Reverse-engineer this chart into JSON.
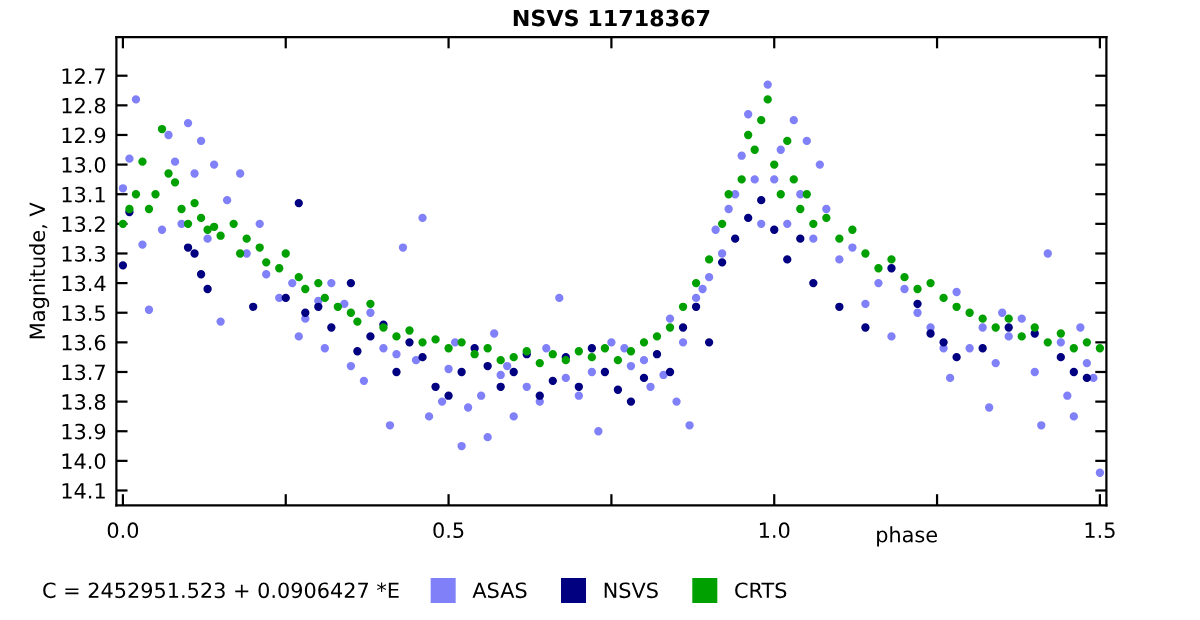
{
  "chart_data": {
    "type": "scatter",
    "title": "NSVS 11718367",
    "xlabel": "phase",
    "ylabel": "Magnitude, V",
    "annotations": [
      "C = 2452951.523 + 0.0906427 *E"
    ],
    "xlim": [
      -0.01,
      1.51
    ],
    "ylim": [
      14.15,
      12.57
    ],
    "xticks": [
      {
        "value": 0,
        "label": "0.0"
      },
      {
        "value": 0.25,
        "label": null
      },
      {
        "value": 0.5,
        "label": "0.5"
      },
      {
        "value": 0.75,
        "label": null
      },
      {
        "value": 1,
        "label": "1.0"
      },
      {
        "value": 1.25,
        "label": null
      },
      {
        "value": 1.5,
        "label": "1.5"
      }
    ],
    "yticks": [
      12.7,
      12.8,
      12.9,
      {
        "value": 13.0,
        "label": "13.0"
      },
      13.1,
      13.2,
      13.3,
      13.4,
      13.5,
      13.6,
      13.7,
      13.8,
      13.9,
      {
        "value": 14.0,
        "label": "14.0"
      },
      14.1
    ],
    "grid": false,
    "legend": "bottom",
    "marker": "circle",
    "series": [
      {
        "name": "ASAS",
        "color": "#8080f8",
        "x": [
          0.0,
          0.01,
          0.02,
          0.03,
          0.04,
          0.06,
          0.07,
          0.08,
          0.09,
          0.1,
          0.11,
          0.12,
          0.13,
          0.14,
          0.15,
          0.16,
          0.18,
          0.19,
          0.21,
          0.22,
          0.24,
          0.26,
          0.27,
          0.28,
          0.3,
          0.31,
          0.32,
          0.34,
          0.35,
          0.37,
          0.38,
          0.4,
          0.41,
          0.42,
          0.43,
          0.45,
          0.46,
          0.47,
          0.49,
          0.5,
          0.51,
          0.52,
          0.53,
          0.55,
          0.56,
          0.57,
          0.58,
          0.59,
          0.6,
          0.62,
          0.64,
          0.65,
          0.67,
          0.68,
          0.7,
          0.72,
          0.73,
          0.75,
          0.77,
          0.78,
          0.8,
          0.81,
          0.83,
          0.84,
          0.85,
          0.86,
          0.87,
          0.88,
          0.89,
          0.9,
          0.91,
          0.92,
          0.93,
          0.94,
          0.95,
          0.96,
          0.97,
          0.98,
          0.99,
          1.0,
          1.01,
          1.02,
          1.03,
          1.04,
          1.05,
          1.06,
          1.07,
          1.08,
          1.1,
          1.12,
          1.14,
          1.16,
          1.18,
          1.2,
          1.22,
          1.24,
          1.26,
          1.27,
          1.28,
          1.3,
          1.32,
          1.33,
          1.34,
          1.35,
          1.36,
          1.38,
          1.4,
          1.41,
          1.42,
          1.44,
          1.45,
          1.46,
          1.47,
          1.48,
          1.49,
          1.5
        ],
        "values": [
          13.08,
          12.98,
          12.78,
          13.27,
          13.49,
          13.22,
          12.9,
          12.99,
          13.2,
          12.86,
          13.03,
          12.92,
          13.25,
          13.0,
          13.53,
          13.12,
          13.03,
          13.3,
          13.2,
          13.37,
          13.45,
          13.4,
          13.58,
          13.52,
          13.46,
          13.62,
          13.4,
          13.47,
          13.68,
          13.73,
          13.5,
          13.62,
          13.88,
          13.64,
          13.28,
          13.66,
          13.18,
          13.85,
          13.8,
          13.69,
          13.6,
          13.95,
          13.82,
          13.78,
          13.92,
          13.57,
          13.71,
          13.68,
          13.85,
          13.75,
          13.8,
          13.62,
          13.45,
          13.72,
          13.78,
          13.7,
          13.9,
          13.6,
          13.62,
          13.68,
          13.66,
          13.75,
          13.71,
          13.52,
          13.8,
          13.6,
          13.88,
          13.45,
          13.42,
          13.38,
          13.22,
          13.3,
          13.15,
          13.1,
          12.97,
          12.83,
          13.05,
          13.2,
          12.73,
          13.05,
          12.95,
          13.2,
          12.85,
          13.1,
          12.92,
          13.25,
          13.0,
          13.15,
          13.32,
          13.28,
          13.47,
          13.4,
          13.58,
          13.42,
          13.5,
          13.55,
          13.62,
          13.72,
          13.43,
          13.62,
          13.55,
          13.82,
          13.67,
          13.5,
          13.58,
          13.52,
          13.7,
          13.88,
          13.3,
          13.6,
          13.78,
          13.85,
          13.55,
          13.67,
          13.72,
          14.04
        ]
      },
      {
        "name": "NSVS",
        "color": "#000080",
        "x": [
          0.0,
          0.01,
          0.1,
          0.11,
          0.12,
          0.13,
          0.2,
          0.25,
          0.27,
          0.28,
          0.3,
          0.32,
          0.35,
          0.36,
          0.38,
          0.4,
          0.42,
          0.44,
          0.46,
          0.48,
          0.5,
          0.52,
          0.54,
          0.56,
          0.58,
          0.6,
          0.62,
          0.64,
          0.66,
          0.68,
          0.7,
          0.72,
          0.74,
          0.76,
          0.78,
          0.8,
          0.82,
          0.84,
          0.86,
          0.88,
          0.9,
          0.92,
          0.94,
          0.96,
          0.98,
          1.0,
          1.02,
          1.04,
          1.06,
          1.1,
          1.14,
          1.18,
          1.22,
          1.24,
          1.26,
          1.28,
          1.32,
          1.36,
          1.4,
          1.44,
          1.46,
          1.48
        ],
        "values": [
          13.34,
          13.16,
          13.28,
          13.3,
          13.37,
          13.42,
          13.48,
          13.45,
          13.13,
          13.5,
          13.48,
          13.55,
          13.4,
          13.63,
          13.58,
          13.54,
          13.7,
          13.6,
          13.65,
          13.75,
          13.78,
          13.7,
          13.62,
          13.68,
          13.75,
          13.7,
          13.64,
          13.78,
          13.73,
          13.65,
          13.75,
          13.62,
          13.7,
          13.76,
          13.8,
          13.72,
          13.64,
          13.7,
          13.55,
          13.48,
          13.6,
          13.33,
          13.25,
          13.18,
          13.12,
          13.22,
          13.32,
          13.25,
          13.4,
          13.48,
          13.55,
          13.35,
          13.47,
          13.57,
          13.6,
          13.65,
          13.62,
          13.55,
          13.57,
          13.65,
          13.7,
          13.72
        ]
      },
      {
        "name": "CRTS",
        "color": "#00a000",
        "x": [
          0.0,
          0.01,
          0.02,
          0.03,
          0.04,
          0.05,
          0.06,
          0.07,
          0.08,
          0.09,
          0.1,
          0.11,
          0.12,
          0.13,
          0.14,
          0.15,
          0.17,
          0.18,
          0.19,
          0.21,
          0.22,
          0.24,
          0.25,
          0.27,
          0.28,
          0.3,
          0.31,
          0.33,
          0.35,
          0.36,
          0.38,
          0.4,
          0.42,
          0.44,
          0.46,
          0.48,
          0.5,
          0.52,
          0.54,
          0.56,
          0.58,
          0.6,
          0.62,
          0.64,
          0.66,
          0.68,
          0.7,
          0.72,
          0.74,
          0.76,
          0.78,
          0.8,
          0.82,
          0.84,
          0.86,
          0.88,
          0.9,
          0.92,
          0.93,
          0.95,
          0.96,
          0.97,
          0.98,
          0.99,
          1.0,
          1.01,
          1.02,
          1.03,
          1.04,
          1.05,
          1.06,
          1.08,
          1.1,
          1.12,
          1.14,
          1.16,
          1.18,
          1.2,
          1.22,
          1.24,
          1.26,
          1.28,
          1.3,
          1.32,
          1.34,
          1.36,
          1.38,
          1.4,
          1.42,
          1.44,
          1.46,
          1.48,
          1.5
        ],
        "values": [
          13.2,
          13.15,
          13.1,
          12.99,
          13.15,
          13.1,
          12.88,
          13.03,
          13.06,
          13.15,
          13.2,
          13.13,
          13.18,
          13.22,
          13.21,
          13.24,
          13.2,
          13.3,
          13.25,
          13.28,
          13.33,
          13.35,
          13.3,
          13.38,
          13.42,
          13.4,
          13.45,
          13.48,
          13.5,
          13.53,
          13.47,
          13.55,
          13.58,
          13.56,
          13.6,
          13.59,
          13.62,
          13.6,
          13.64,
          13.62,
          13.66,
          13.65,
          13.63,
          13.67,
          13.64,
          13.66,
          13.63,
          13.65,
          13.62,
          13.66,
          13.63,
          13.6,
          13.58,
          13.55,
          13.48,
          13.4,
          13.32,
          13.2,
          13.1,
          13.05,
          12.9,
          12.95,
          12.85,
          12.78,
          13.0,
          13.1,
          12.92,
          13.05,
          13.15,
          13.1,
          13.2,
          13.18,
          13.25,
          13.22,
          13.3,
          13.35,
          13.32,
          13.38,
          13.42,
          13.4,
          13.45,
          13.48,
          13.5,
          13.52,
          13.55,
          13.52,
          13.58,
          13.55,
          13.6,
          13.57,
          13.62,
          13.6,
          13.62
        ]
      }
    ]
  }
}
